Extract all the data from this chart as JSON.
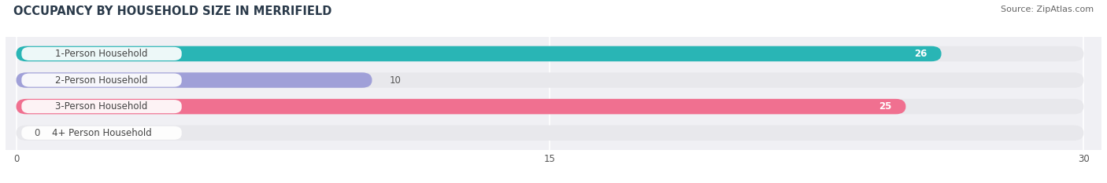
{
  "title": "OCCUPANCY BY HOUSEHOLD SIZE IN MERRIFIELD",
  "source": "Source: ZipAtlas.com",
  "categories": [
    "1-Person Household",
    "2-Person Household",
    "3-Person Household",
    "4+ Person Household"
  ],
  "values": [
    26,
    10,
    25,
    0
  ],
  "bar_colors": [
    "#29b5b5",
    "#a0a0d8",
    "#f07090",
    "#f5c896"
  ],
  "bar_bg_color": "#e8e8ec",
  "xlim_max": 30,
  "xticks": [
    0,
    15,
    30
  ],
  "label_inside_color": "#ffffff",
  "label_outside_color": "#555555",
  "title_fontsize": 10.5,
  "source_fontsize": 8,
  "bar_label_fontsize": 8.5,
  "category_fontsize": 8.5,
  "bar_height": 0.58,
  "fig_bg_color": "#ffffff",
  "axes_bg_color": "#f0f0f4"
}
